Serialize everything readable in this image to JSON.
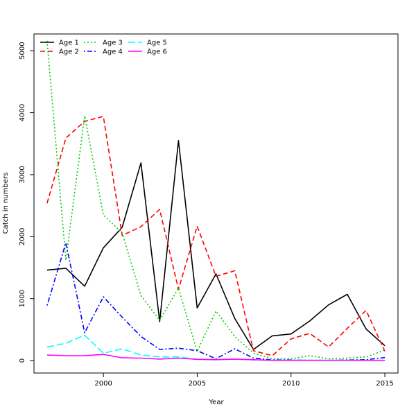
{
  "chart_data": {
    "type": "line",
    "xlabel": "Year",
    "ylabel": "Catch in numbers",
    "xlim": [
      1996.3,
      2015.7
    ],
    "ylim": [
      -200,
      5270
    ],
    "x_ticks": [
      2000,
      2005,
      2010,
      2015
    ],
    "x_tick_labels": [
      "2000",
      "2005",
      "2010",
      "2015"
    ],
    "y_ticks": [
      0,
      1000,
      2000,
      3000,
      4000,
      5000
    ],
    "y_tick_labels": [
      "0",
      "1000",
      "2000",
      "3000",
      "4000",
      "5000"
    ],
    "legend_position": "top-left",
    "x": [
      1997,
      1998,
      1999,
      2000,
      2001,
      2002,
      2003,
      2004,
      2005,
      2006,
      2007,
      2008,
      2009,
      2010,
      2011,
      2012,
      2013,
      2014,
      2015
    ],
    "series": [
      {
        "name": "Age 1",
        "color": "#000000",
        "dash": "solid",
        "values": [
          1460,
          1490,
          1200,
          1820,
          2150,
          3190,
          630,
          3550,
          850,
          1400,
          680,
          180,
          400,
          430,
          640,
          900,
          1070,
          510,
          240
        ]
      },
      {
        "name": "Age 2",
        "color": "#ff0000",
        "dash": "dashed",
        "values": [
          2540,
          3590,
          3860,
          3940,
          2020,
          2160,
          2440,
          1150,
          2170,
          1360,
          1450,
          160,
          80,
          350,
          440,
          220,
          520,
          810,
          150
        ]
      },
      {
        "name": "Age 3",
        "color": "#00cd00",
        "dash": "dotted",
        "values": [
          5160,
          1620,
          3950,
          2350,
          2060,
          1050,
          650,
          1170,
          150,
          800,
          390,
          120,
          30,
          30,
          80,
          30,
          40,
          60,
          170
        ]
      },
      {
        "name": "Age 4",
        "color": "#0000ff",
        "dash": "dotdash",
        "values": [
          890,
          1900,
          450,
          1030,
          700,
          390,
          180,
          200,
          160,
          30,
          190,
          40,
          10,
          10,
          5,
          5,
          10,
          15,
          50
        ]
      },
      {
        "name": "Age 5",
        "color": "#00ffff",
        "dash": "longdash",
        "values": [
          220,
          280,
          410,
          120,
          190,
          90,
          60,
          60,
          20,
          20,
          20,
          10,
          5,
          5,
          5,
          5,
          5,
          5,
          5
        ]
      },
      {
        "name": "Age 6",
        "color": "#ff00ff",
        "dash": "solid",
        "values": [
          90,
          80,
          80,
          100,
          45,
          40,
          25,
          40,
          20,
          15,
          25,
          15,
          5,
          5,
          5,
          5,
          5,
          5,
          5
        ]
      }
    ]
  }
}
